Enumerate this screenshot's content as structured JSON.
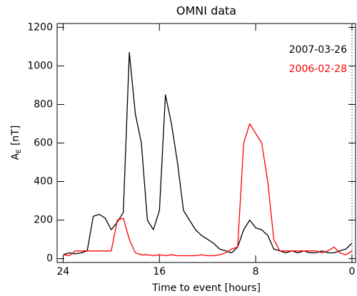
{
  "chart_data": {
    "type": "line",
    "title": "OMNI data",
    "xlabel": "Time to event [hours]",
    "ylabel_base": "A",
    "ylabel_subscript": "E",
    "ylabel_unit": "[nT]",
    "x": [
      24,
      23.5,
      23,
      22.5,
      22,
      21.5,
      21,
      20.5,
      20,
      19.5,
      19,
      18.5,
      18,
      17.5,
      17,
      16.5,
      16,
      15.5,
      15,
      14.5,
      14,
      13.5,
      13,
      12.5,
      12,
      11.5,
      11,
      10.5,
      10,
      9.5,
      9,
      8.5,
      8,
      7.5,
      7,
      6.5,
      6,
      5.5,
      5,
      4.5,
      4,
      3.5,
      3,
      2.5,
      2,
      1.5,
      1,
      0.5,
      0
    ],
    "series": [
      {
        "name": "2007-03-26",
        "color": "#000000",
        "values": [
          20,
          30,
          25,
          30,
          40,
          220,
          230,
          210,
          150,
          190,
          240,
          1070,
          750,
          600,
          200,
          150,
          250,
          850,
          700,
          500,
          250,
          200,
          150,
          120,
          100,
          80,
          50,
          40,
          30,
          60,
          150,
          200,
          160,
          150,
          120,
          50,
          40,
          30,
          40,
          30,
          40,
          30,
          30,
          40,
          30,
          30,
          40,
          50,
          80
        ]
      },
      {
        "name": "2006-02-28",
        "color": "#ff0000",
        "values": [
          20,
          15,
          40,
          40,
          40,
          40,
          40,
          40,
          40,
          200,
          210,
          100,
          30,
          20,
          20,
          15,
          20,
          15,
          20,
          15,
          15,
          15,
          15,
          20,
          15,
          15,
          20,
          30,
          50,
          60,
          600,
          700,
          650,
          600,
          400,
          100,
          40,
          40,
          40,
          40,
          40,
          40,
          40,
          30,
          40,
          60,
          30,
          20,
          40
        ]
      }
    ],
    "xlim": [
      24.5,
      -0.3
    ],
    "xticks": [
      24,
      16,
      8,
      0
    ],
    "ylim": [
      -20,
      1220
    ],
    "yticks": [
      0,
      200,
      400,
      600,
      800,
      1000,
      1200
    ],
    "vline": 0,
    "legend": "upper right"
  }
}
